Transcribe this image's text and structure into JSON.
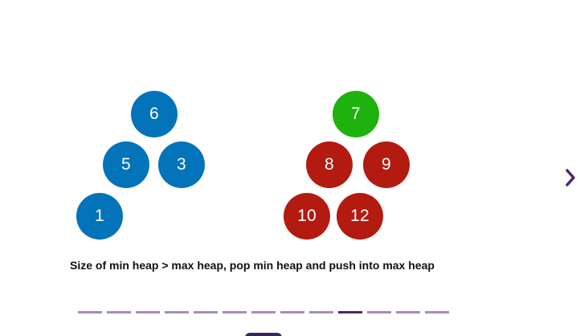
{
  "diagram": {
    "min_heap": {
      "nodes": [
        "6",
        "5",
        "3",
        "1"
      ],
      "color": "#0373ba"
    },
    "max_heap": {
      "nodes": [
        "7",
        "8",
        "9",
        "10",
        "12"
      ],
      "root_color": "#1eb20f",
      "color": "#b31a10"
    },
    "caption": "Size of min heap > max heap, pop min heap and push into max heap"
  },
  "navigation": {
    "next_icon": "chevron-right-icon",
    "accent_color": "#4a2a6d",
    "inactive_color": "#a78cc0",
    "step_count": 13,
    "current_step": 10
  }
}
